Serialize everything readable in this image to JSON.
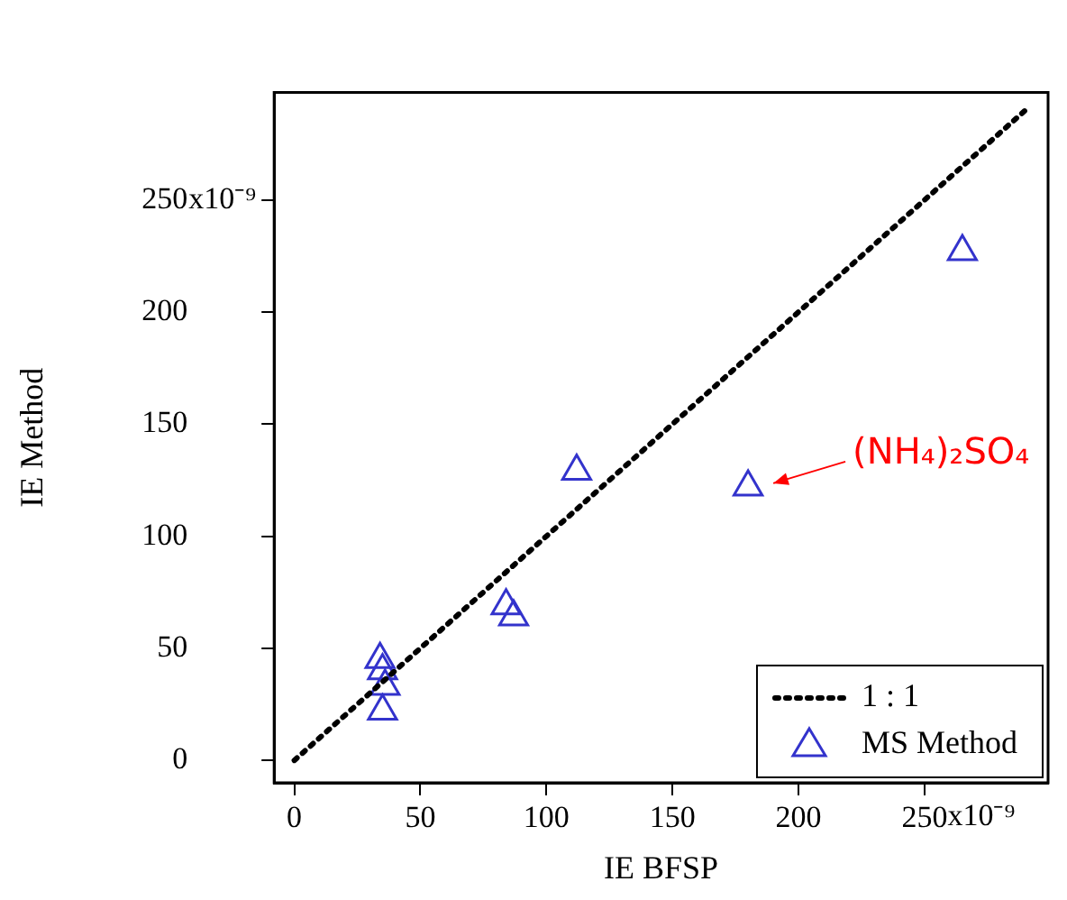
{
  "chart_data": {
    "type": "scatter",
    "xlabel": "IE BFSP",
    "ylabel": "IE Method",
    "xlim": [
      -8,
      299
    ],
    "ylim": [
      -10,
      298
    ],
    "xticks": [
      0,
      50,
      100,
      150,
      200,
      250
    ],
    "yticks": [
      0,
      50,
      100,
      150,
      200,
      250
    ],
    "legend": "bottom right",
    "grid": false,
    "series": [
      {
        "name": "1 : 1",
        "type": "line",
        "line_style": "dotted",
        "marker": "none",
        "color": "#000000",
        "x": [
          0,
          290
        ],
        "values": [
          0,
          290
        ]
      },
      {
        "name": "MS Method",
        "marker": "triangle",
        "color": "#3333cc",
        "x": [
          34,
          35,
          36,
          35,
          84,
          87,
          112,
          180,
          265
        ],
        "values": [
          45,
          40,
          33,
          22,
          69,
          64,
          129,
          122,
          227
        ]
      }
    ],
    "annotations": [
      {
        "text": "(NH₄)₂SO₄",
        "x": 180,
        "y": 122
      },
      "x10⁻⁹",
      "x10⁻⁹"
    ]
  }
}
